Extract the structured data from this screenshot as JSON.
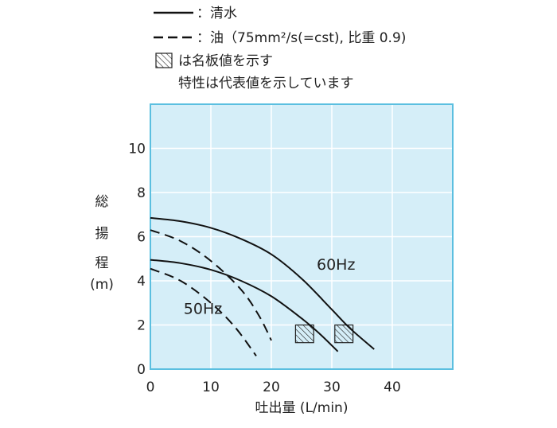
{
  "chart_data": {
    "type": "line",
    "legend": {
      "solid_label": "：清水",
      "dashed_label": "：油（75mm²/s(=cst), 比重 0.9)",
      "hatch_label": "は名板値を示す",
      "note": "特性は代表値を示しています"
    },
    "xlabel": "吐出量 (L/min)",
    "ylabel_chars": [
      "総",
      "揚",
      "程",
      "(m)"
    ],
    "xlim": [
      0,
      50
    ],
    "ylim": [
      0,
      12
    ],
    "xticks": [
      0,
      10,
      20,
      30,
      40
    ],
    "yticks": [
      0,
      2,
      4,
      6,
      8,
      10
    ],
    "grid": true,
    "annotations": [
      {
        "text": "60Hz",
        "x": 27.5,
        "y": 4.5
      },
      {
        "text": "50Hz",
        "x": 5.5,
        "y": 2.5
      }
    ],
    "series": [
      {
        "id": "60hz-water",
        "style": "solid",
        "points": [
          [
            0,
            6.85
          ],
          [
            5,
            6.7
          ],
          [
            10,
            6.4
          ],
          [
            15,
            5.9
          ],
          [
            20,
            5.2
          ],
          [
            25,
            4.1
          ],
          [
            30,
            2.7
          ],
          [
            33,
            1.85
          ],
          [
            37,
            0.9
          ]
        ]
      },
      {
        "id": "50hz-water",
        "style": "solid",
        "points": [
          [
            0,
            4.95
          ],
          [
            5,
            4.8
          ],
          [
            10,
            4.5
          ],
          [
            15,
            4.0
          ],
          [
            20,
            3.3
          ],
          [
            25,
            2.3
          ],
          [
            28,
            1.6
          ],
          [
            31,
            0.8
          ]
        ]
      },
      {
        "id": "60hz-oil",
        "style": "dashed",
        "points": [
          [
            0,
            6.3
          ],
          [
            5,
            5.8
          ],
          [
            10,
            4.9
          ],
          [
            15,
            3.6
          ],
          [
            18,
            2.4
          ],
          [
            20,
            1.3
          ]
        ]
      },
      {
        "id": "50hz-oil",
        "style": "dashed",
        "points": [
          [
            0,
            4.55
          ],
          [
            5,
            4.0
          ],
          [
            10,
            3.0
          ],
          [
            14,
            1.9
          ],
          [
            17.5,
            0.6
          ]
        ]
      }
    ],
    "rated_points": [
      {
        "label": "50Hz",
        "x": 24,
        "y": 1.2,
        "w": 3,
        "h": 0.8
      },
      {
        "label": "60Hz",
        "x": 30.5,
        "y": 1.2,
        "w": 3,
        "h": 0.8
      }
    ],
    "colors": {
      "plot_background": "#d5eef8",
      "grid": "#ffffff",
      "frame": "#5bbfe0",
      "curve": "#111111"
    }
  }
}
